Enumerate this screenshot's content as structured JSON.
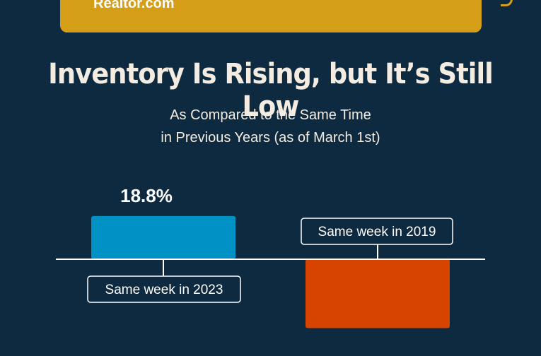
{
  "header": {
    "source": "Realtor.com"
  },
  "chart_data": {
    "type": "bar",
    "title": "Inventory Is Rising, but It’s Still Low",
    "subtitle": [
      "As Compared to the Same Time",
      "in Previous Years (as of March 1st)"
    ],
    "categories": [
      "Same week in 2023",
      "Same week in 2019"
    ],
    "values": [
      18.8,
      -30.0
    ],
    "data_labels": [
      "18.8%",
      ""
    ],
    "colors": [
      "#0092c5",
      "#d74400"
    ],
    "ylim": [
      -40,
      25
    ],
    "grid": false,
    "legend": "none"
  }
}
